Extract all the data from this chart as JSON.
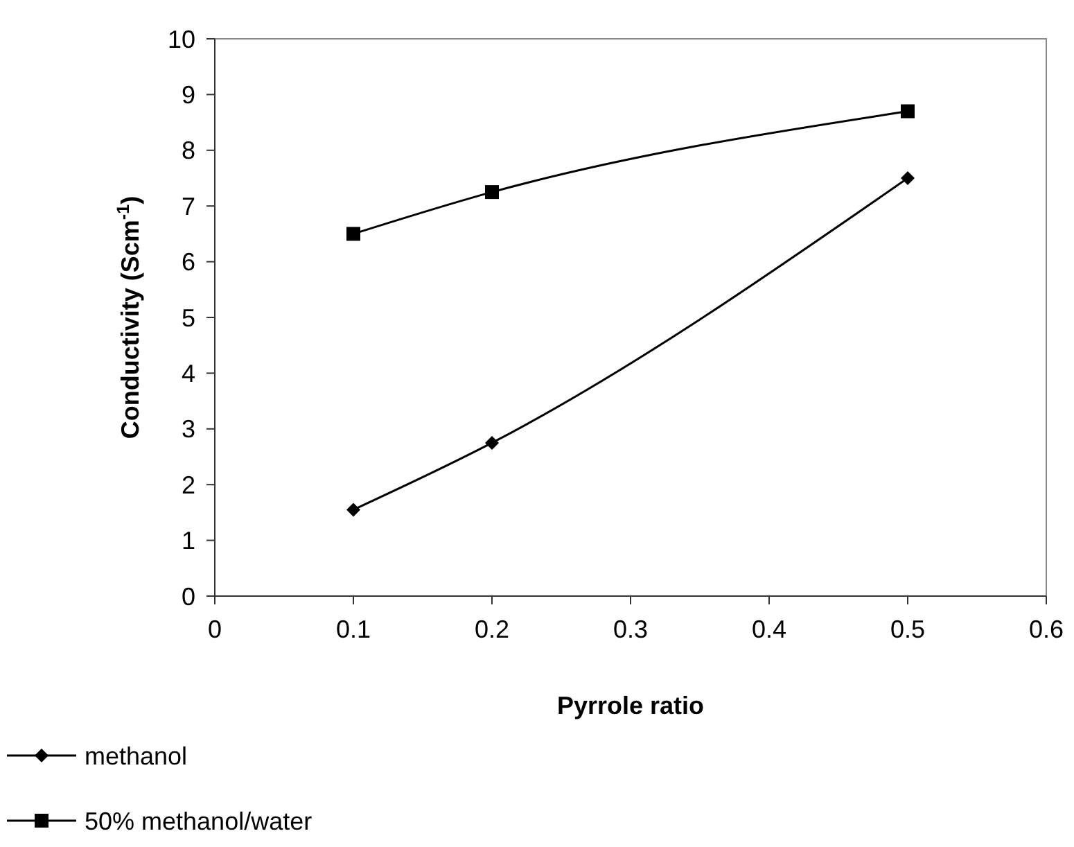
{
  "chart_data": {
    "type": "line",
    "xlabel": "Pyrrole ratio",
    "ylabel": "Conductivity (Scm$^{-1}$)",
    "xlim": [
      0,
      0.6
    ],
    "xticks": [
      0,
      0.1,
      0.2,
      0.3,
      0.4,
      0.5,
      0.6
    ],
    "ylim": [
      0,
      10
    ],
    "yticks": [
      0,
      1,
      2,
      3,
      4,
      5,
      6,
      7,
      8,
      9,
      10
    ],
    "x": [
      0.1,
      0.2,
      0.5
    ],
    "grid": false,
    "legend": "bottom left",
    "line_style": "solid",
    "series": [
      {
        "name": "methanol",
        "color": "#000000",
        "marker": "diamond",
        "values": [
          1.55,
          2.75,
          7.5
        ]
      },
      {
        "name": "50% methanol/water",
        "color": "#000000",
        "marker": "square",
        "values": [
          6.5,
          7.25,
          8.7
        ]
      }
    ]
  }
}
